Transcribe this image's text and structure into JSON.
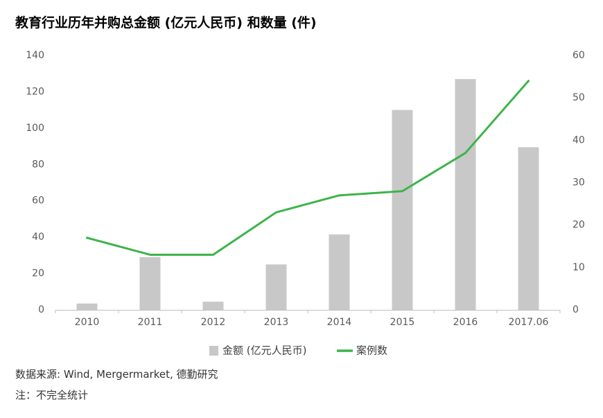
{
  "chart_data": {
    "type": "bar",
    "title": "教育行业历年并购总金额 (亿元人民币) 和数量 (件)",
    "categories": [
      "2010",
      "2011",
      "2012",
      "2013",
      "2014",
      "2015",
      "2016",
      "2017.06"
    ],
    "series": [
      {
        "name": "金额 (亿元人民币)",
        "type": "bar",
        "axis": "left",
        "color": "#c8c8c8",
        "values": [
          3.5,
          29,
          4.5,
          25,
          41.5,
          110,
          127,
          89.5
        ]
      },
      {
        "name": "案例数",
        "type": "line",
        "axis": "right",
        "color": "#3cb44a",
        "values": [
          17,
          13,
          13,
          23,
          27,
          28,
          37,
          54
        ]
      }
    ],
    "left_axis": {
      "ylim": [
        0,
        140
      ],
      "ticks": [
        0,
        20,
        40,
        60,
        80,
        100,
        120,
        140
      ]
    },
    "right_axis": {
      "ylim": [
        0,
        60
      ],
      "ticks": [
        0,
        10,
        20,
        30,
        40,
        50,
        60
      ]
    },
    "grid": false,
    "legend_position": "bottom-center"
  },
  "notes": {
    "source": "数据来源: Wind, Mergermarket, 德勤研究",
    "remark": "注：不完全统计"
  }
}
